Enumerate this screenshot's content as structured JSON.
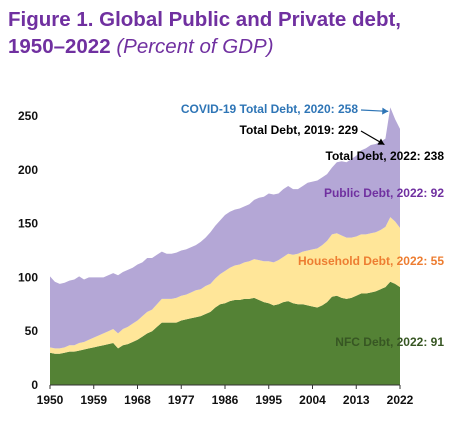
{
  "title": "Figure 1. Global Public and Private debt, 1950–2022",
  "subtitle": "(Percent of GDP)",
  "chart_data": {
    "type": "area",
    "stacked": true,
    "xlim": [
      1950,
      2022
    ],
    "ylim": [
      0,
      250
    ],
    "x_ticks": [
      1950,
      1959,
      1968,
      1977,
      1986,
      1995,
      2004,
      2013,
      2022
    ],
    "x_tick_labels": [
      "1950",
      "1959",
      "1968",
      "1977",
      "1986",
      "1995",
      "2004",
      "2013",
      "2022"
    ],
    "y_ticks": [
      0,
      50,
      100,
      150,
      200,
      250
    ],
    "y_tick_labels": [
      "0",
      "50",
      "100",
      "150",
      "200",
      "250"
    ],
    "grid": false,
    "legend": "none",
    "x": [
      1950,
      1951,
      1952,
      1953,
      1954,
      1955,
      1956,
      1957,
      1958,
      1959,
      1960,
      1961,
      1962,
      1963,
      1964,
      1965,
      1966,
      1967,
      1968,
      1969,
      1970,
      1971,
      1972,
      1973,
      1974,
      1975,
      1976,
      1977,
      1978,
      1979,
      1980,
      1981,
      1982,
      1983,
      1984,
      1985,
      1986,
      1987,
      1988,
      1989,
      1990,
      1991,
      1992,
      1993,
      1994,
      1995,
      1996,
      1997,
      1998,
      1999,
      2000,
      2001,
      2002,
      2003,
      2004,
      2005,
      2006,
      2007,
      2008,
      2009,
      2010,
      2011,
      2012,
      2013,
      2014,
      2015,
      2016,
      2017,
      2018,
      2019,
      2020,
      2021,
      2022
    ],
    "series": [
      {
        "name": "NFC Debt",
        "color": "#548235",
        "values": [
          30,
          29,
          29,
          30,
          31,
          31,
          32,
          33,
          34,
          35,
          36,
          37,
          38,
          39,
          34,
          37,
          38,
          40,
          42,
          45,
          48,
          50,
          54,
          58,
          58,
          58,
          58,
          60,
          61,
          62,
          63,
          64,
          66,
          68,
          72,
          75,
          76,
          78,
          79,
          79,
          80,
          80,
          81,
          79,
          77,
          76,
          74,
          75,
          77,
          78,
          76,
          75,
          75,
          74,
          73,
          72,
          74,
          77,
          82,
          83,
          81,
          80,
          81,
          83,
          85,
          85,
          86,
          87,
          89,
          91,
          96,
          94,
          91
        ]
      },
      {
        "name": "Household Debt",
        "color": "#ffe699",
        "values": [
          5,
          5,
          5,
          5,
          6,
          6,
          7,
          7,
          8,
          9,
          10,
          11,
          12,
          13,
          14,
          15,
          16,
          17,
          18,
          19,
          20,
          20,
          21,
          22,
          22,
          22,
          23,
          23,
          23,
          24,
          25,
          25,
          26,
          26,
          27,
          28,
          30,
          31,
          32,
          33,
          34,
          35,
          36,
          37,
          38,
          39,
          40,
          41,
          42,
          44,
          45,
          47,
          49,
          51,
          53,
          55,
          56,
          57,
          58,
          58,
          58,
          57,
          56,
          55,
          55,
          55,
          55,
          55,
          55,
          56,
          60,
          58,
          55
        ]
      },
      {
        "name": "Public Debt",
        "color": "#b4a7d6",
        "values": [
          66,
          62,
          60,
          60,
          60,
          61,
          62,
          58,
          58,
          56,
          54,
          52,
          52,
          52,
          54,
          53,
          53,
          52,
          52,
          50,
          50,
          48,
          46,
          44,
          42,
          42,
          42,
          42,
          42,
          42,
          42,
          44,
          45,
          48,
          49,
          50,
          52,
          52,
          52,
          52,
          52,
          53,
          55,
          58,
          60,
          63,
          63,
          62,
          63,
          63,
          61,
          60,
          61,
          63,
          63,
          63,
          63,
          62,
          62,
          66,
          69,
          70,
          73,
          75,
          78,
          80,
          82,
          82,
          82,
          82,
          102,
          95,
          92
        ]
      }
    ],
    "annotations": [
      {
        "text": "COVID-19 Total Debt, 2020: 258",
        "x": 2020,
        "y": 258,
        "color": "#2e75b6"
      },
      {
        "text": "Total Debt, 2019: 229",
        "x": 2019,
        "y": 229,
        "color": "#000000"
      },
      {
        "text": "Total Debt, 2022: 238",
        "x": 2022,
        "y": 238,
        "color": "#000000"
      },
      {
        "text": "Public Debt, 2022: 92",
        "color": "#7030a0"
      },
      {
        "text": "Household Debt, 2022: 55",
        "color": "#ed7d31"
      },
      {
        "text": "NFC Debt, 2022: 91",
        "color": "#375623"
      }
    ]
  }
}
